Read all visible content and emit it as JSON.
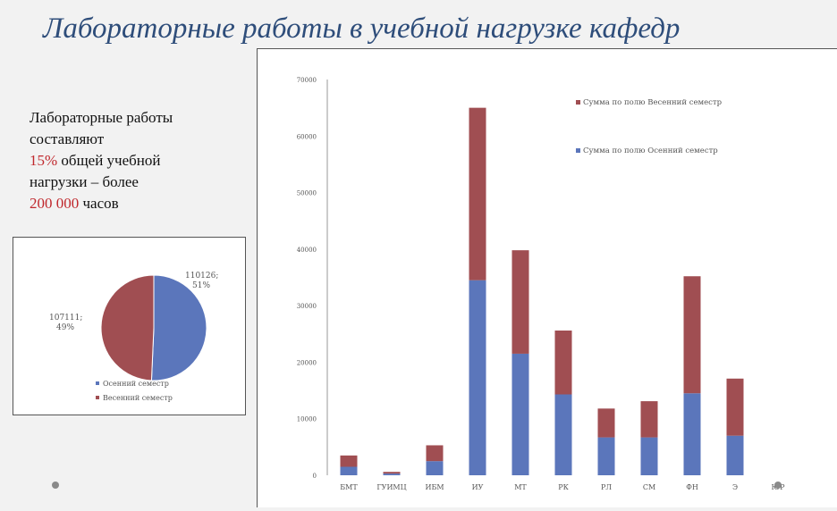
{
  "slide": {
    "title": "Лабораторные работы в учебной нагрузке кафедр",
    "text_line1": "Лабораторные работы",
    "text_line2": "составляют",
    "text_line3_value": "15%",
    "text_line3_rest": " общей учебной",
    "text_line4": "нагрузки – более",
    "text_line5_value": "200 000",
    "text_line5_rest": " часов"
  },
  "colors": {
    "autumn": "#5b76bb",
    "spring": "#a04e52",
    "accent": "#c0282d",
    "title": "#2e4d7a"
  },
  "chart_data": [
    {
      "type": "pie",
      "slices": [
        {
          "name": "Осенний семестр",
          "value": 110126,
          "label": "110126;\n51%",
          "color": "#5b76bb"
        },
        {
          "name": "Весенний семестр",
          "value": 107111,
          "label": "107111;\n49%",
          "color": "#a04e52"
        }
      ],
      "legend": [
        "Осенний семестр",
        "Весенний семестр"
      ],
      "legend_position": "bottom-left"
    },
    {
      "type": "bar",
      "stacked": true,
      "categories": [
        "БМТ",
        "ГУИМЦ",
        "ИБМ",
        "ИУ",
        "МТ",
        "РК",
        "РЛ",
        "СМ",
        "ФН",
        "Э",
        "ЮР"
      ],
      "series": [
        {
          "name": "Сумма по полю Осенний семестр",
          "color": "#5b76bb",
          "values": [
            1500,
            300,
            2500,
            34500,
            21500,
            14300,
            6700,
            6700,
            14500,
            7000,
            0
          ]
        },
        {
          "name": "Сумма по полю Весенний семестр",
          "color": "#a04e52",
          "values": [
            2000,
            300,
            2800,
            30500,
            18300,
            11300,
            5100,
            6400,
            20700,
            10100,
            0
          ]
        }
      ],
      "ylim": [
        0,
        70000
      ],
      "yticks": [
        0,
        10000,
        20000,
        30000,
        40000,
        50000,
        60000,
        70000
      ],
      "legend_order": [
        "Сумма по полю Весенний семестр",
        "Сумма по полю Осенний семестр"
      ],
      "legend_position": "top-right",
      "grid": false
    }
  ]
}
